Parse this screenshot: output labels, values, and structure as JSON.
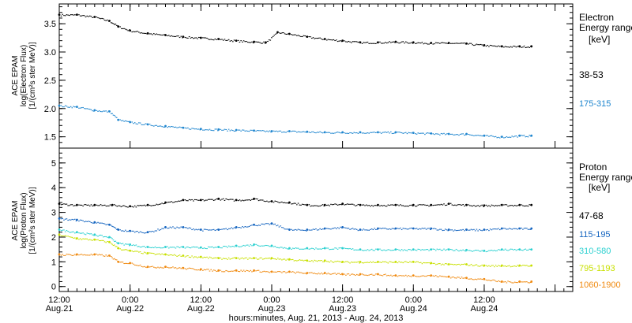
{
  "chart_data": [
    {
      "type": "scatter",
      "panel": "top",
      "ylabel_lines": [
        "ACE EPAM",
        "log(Electron Flux)",
        "[1/(cm²s ster MeV)]"
      ],
      "ylim": [
        1.3,
        3.85
      ],
      "yticks": [
        1.5,
        2.0,
        2.5,
        3.0,
        3.5
      ],
      "legend_title": [
        "Electron",
        "Energy range",
        "[keV]"
      ],
      "series": [
        {
          "name": "38-53",
          "color": "#000000",
          "x": [
            0,
            6,
            12,
            17,
            20,
            24,
            30,
            36,
            42,
            48,
            54,
            60,
            66,
            70,
            74,
            78,
            84,
            90,
            96,
            102,
            108,
            114,
            120,
            126,
            132,
            138,
            144,
            150,
            156,
            160
          ],
          "y": [
            3.66,
            3.66,
            3.62,
            3.55,
            3.45,
            3.38,
            3.33,
            3.3,
            3.27,
            3.25,
            3.23,
            3.2,
            3.18,
            3.17,
            3.35,
            3.32,
            3.27,
            3.23,
            3.2,
            3.17,
            3.17,
            3.18,
            3.17,
            3.16,
            3.16,
            3.15,
            3.12,
            3.1,
            3.1,
            3.1
          ]
        },
        {
          "name": "175-315",
          "color": "#1f86cf",
          "x": [
            0,
            6,
            12,
            17,
            20,
            24,
            30,
            36,
            42,
            48,
            54,
            60,
            66,
            72,
            78,
            84,
            90,
            96,
            102,
            108,
            114,
            120,
            126,
            132,
            138,
            144,
            150,
            156,
            160
          ],
          "y": [
            2.05,
            2.03,
            1.97,
            1.95,
            1.8,
            1.76,
            1.72,
            1.69,
            1.66,
            1.64,
            1.63,
            1.62,
            1.61,
            1.6,
            1.6,
            1.59,
            1.58,
            1.58,
            1.58,
            1.58,
            1.58,
            1.57,
            1.56,
            1.55,
            1.55,
            1.52,
            1.5,
            1.52,
            1.52
          ]
        }
      ]
    },
    {
      "type": "scatter",
      "panel": "bottom",
      "ylabel_lines": [
        "ACE EPAM",
        "log(Proton Flux)",
        "[1/(cm²s ster MeV)]"
      ],
      "ylim": [
        -0.2,
        5.6
      ],
      "yticks": [
        0,
        1,
        2,
        3,
        4,
        5
      ],
      "legend_title": [
        "Proton",
        "Energy range",
        "[keV]"
      ],
      "series": [
        {
          "name": "47-68",
          "color": "#000000",
          "x": [
            0,
            6,
            12,
            18,
            24,
            30,
            36,
            42,
            48,
            54,
            60,
            66,
            72,
            78,
            84,
            90,
            96,
            102,
            108,
            114,
            120,
            126,
            132,
            138,
            144,
            150,
            156,
            160
          ],
          "y": [
            3.35,
            3.3,
            3.3,
            3.3,
            3.25,
            3.3,
            3.4,
            3.5,
            3.5,
            3.55,
            3.5,
            3.55,
            3.45,
            3.4,
            3.3,
            3.3,
            3.35,
            3.3,
            3.3,
            3.3,
            3.3,
            3.3,
            3.35,
            3.3,
            3.28,
            3.3,
            3.3,
            3.3
          ]
        },
        {
          "name": "115-195",
          "color": "#1565c0",
          "x": [
            0,
            6,
            12,
            17,
            20,
            24,
            30,
            36,
            42,
            48,
            54,
            60,
            66,
            72,
            78,
            84,
            90,
            96,
            102,
            108,
            114,
            120,
            126,
            132,
            138,
            144,
            150,
            156,
            160
          ],
          "y": [
            2.75,
            2.7,
            2.6,
            2.5,
            2.3,
            2.25,
            2.2,
            2.4,
            2.4,
            2.3,
            2.3,
            2.4,
            2.5,
            2.55,
            2.3,
            2.3,
            2.35,
            2.4,
            2.3,
            2.35,
            2.35,
            2.35,
            2.35,
            2.3,
            2.3,
            2.3,
            2.35,
            2.35,
            2.35
          ]
        },
        {
          "name": "310-580",
          "color": "#2ad0d0",
          "x": [
            0,
            6,
            12,
            17,
            20,
            24,
            30,
            36,
            42,
            48,
            54,
            60,
            66,
            72,
            78,
            84,
            90,
            96,
            102,
            108,
            114,
            120,
            126,
            132,
            138,
            144,
            150,
            156,
            160
          ],
          "y": [
            2.3,
            2.2,
            2.1,
            2.0,
            1.75,
            1.7,
            1.6,
            1.6,
            1.6,
            1.58,
            1.6,
            1.65,
            1.7,
            1.65,
            1.55,
            1.55,
            1.55,
            1.55,
            1.5,
            1.5,
            1.5,
            1.5,
            1.5,
            1.5,
            1.48,
            1.45,
            1.5,
            1.5,
            1.5
          ]
        },
        {
          "name": "795-1193",
          "color": "#c8e000",
          "x": [
            0,
            6,
            12,
            17,
            20,
            24,
            30,
            36,
            42,
            48,
            54,
            60,
            66,
            72,
            78,
            84,
            90,
            96,
            102,
            108,
            114,
            120,
            126,
            132,
            138,
            144,
            150,
            156,
            160
          ],
          "y": [
            2.1,
            1.95,
            1.9,
            1.8,
            1.55,
            1.45,
            1.35,
            1.3,
            1.25,
            1.2,
            1.15,
            1.15,
            1.15,
            1.15,
            1.1,
            1.05,
            1.05,
            1.0,
            1.0,
            1.0,
            1.0,
            1.0,
            0.95,
            0.9,
            0.9,
            0.85,
            0.85,
            0.85,
            0.85
          ]
        },
        {
          "name": "1060-1900",
          "color": "#f08a10",
          "x": [
            0,
            6,
            12,
            17,
            20,
            24,
            30,
            36,
            42,
            48,
            54,
            60,
            66,
            72,
            78,
            84,
            90,
            96,
            102,
            108,
            114,
            120,
            126,
            132,
            138,
            144,
            150,
            156,
            160
          ],
          "y": [
            1.3,
            1.3,
            1.3,
            1.25,
            1.0,
            0.95,
            0.8,
            0.8,
            0.75,
            0.7,
            0.65,
            0.65,
            0.65,
            0.6,
            0.6,
            0.55,
            0.55,
            0.5,
            0.5,
            0.5,
            0.45,
            0.45,
            0.45,
            0.4,
            0.35,
            0.3,
            0.2,
            0.2,
            0.2
          ]
        }
      ]
    }
  ],
  "x_axis": {
    "xlim": [
      0,
      174
    ],
    "major_ticks": [
      0,
      24,
      48,
      72,
      96,
      120,
      144,
      168
    ],
    "minor_step": 3,
    "tick_time_labels": [
      "12:00",
      "0:00",
      "12:00",
      "0:00",
      "12:00",
      "0:00",
      "12:00"
    ],
    "tick_date_labels": [
      "Aug.21",
      "Aug.22",
      "Aug.22",
      "Aug.23",
      "Aug.23",
      "Aug.24",
      "Aug.24"
    ],
    "xlabel": "hours:minutes, Aug. 21, 2013 - Aug. 24, 2013"
  }
}
